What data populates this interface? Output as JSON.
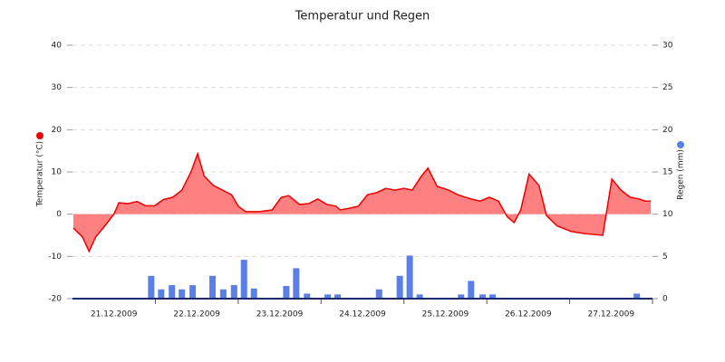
{
  "chart_data": {
    "type": "combo",
    "title": "Temperatur und Regen",
    "xlim": [
      0,
      7
    ],
    "xticks": [
      {
        "value": 0.5,
        "label": "21.12.2009"
      },
      {
        "value": 1.5,
        "label": "22.12.2009"
      },
      {
        "value": 2.5,
        "label": "23.12.2009"
      },
      {
        "value": 3.5,
        "label": "24.12.2009"
      },
      {
        "value": 4.5,
        "label": "25.12.2009"
      },
      {
        "value": 5.5,
        "label": "26.12.2009"
      },
      {
        "value": 6.5,
        "label": "27.12.2009"
      }
    ],
    "xticks_minor": [
      1,
      2,
      3,
      4,
      5,
      6,
      7
    ],
    "ylim": [
      -20,
      40
    ],
    "yticks": [
      -20,
      -10,
      0,
      10,
      20,
      30,
      40
    ],
    "y2lim": [
      0,
      30
    ],
    "y2ticks": [
      0,
      5,
      10,
      15,
      20,
      25,
      30
    ],
    "grid": true,
    "series": [
      {
        "name": "Temperatur (°C)",
        "type": "area",
        "color": "#ee0000",
        "fill": "#ff8080",
        "x": [
          0.01,
          0.12,
          0.2,
          0.28,
          0.39,
          0.5,
          0.56,
          0.67,
          0.78,
          0.88,
          0.99,
          1.1,
          1.21,
          1.32,
          1.43,
          1.51,
          1.59,
          1.7,
          1.81,
          1.92,
          2.0,
          2.09,
          2.25,
          2.41,
          2.52,
          2.61,
          2.74,
          2.85,
          2.96,
          3.07,
          3.18,
          3.23,
          3.34,
          3.45,
          3.56,
          3.67,
          3.78,
          3.89,
          4.0,
          4.1,
          4.21,
          4.29,
          4.4,
          4.54,
          4.65,
          4.81,
          4.92,
          5.03,
          5.14,
          5.25,
          5.33,
          5.41,
          5.51,
          5.63,
          5.72,
          5.85,
          6.02,
          6.18,
          6.4,
          6.51,
          6.62,
          6.73,
          6.84,
          6.91,
          6.98
        ],
        "values": [
          -3.3,
          -5.4,
          -8.8,
          -5.4,
          -2.8,
          0,
          2.7,
          2.5,
          3,
          2,
          2,
          3.5,
          4,
          5.7,
          10,
          14.3,
          9,
          6.8,
          5.7,
          4.6,
          1.9,
          0.6,
          0.6,
          1,
          4,
          4.4,
          2.3,
          2.5,
          3.6,
          2.3,
          1.9,
          1,
          1.4,
          1.9,
          4.6,
          5.1,
          6.1,
          5.7,
          6.1,
          5.7,
          9,
          10.9,
          6.6,
          5.7,
          4.6,
          3.6,
          3.1,
          4,
          3.1,
          -0.7,
          -2,
          1,
          9.5,
          6.8,
          -0.3,
          -2.8,
          -4.1,
          -4.6,
          -5,
          8.3,
          5.7,
          4,
          3.6,
          3.1,
          3.1
        ]
      },
      {
        "name": "Regen (mm)",
        "type": "bar",
        "axis": "y2",
        "color": "#5b7fe8",
        "x": [
          0.95,
          1.07,
          1.2,
          1.32,
          1.45,
          1.69,
          1.82,
          1.95,
          2.07,
          2.19,
          2.58,
          2.7,
          2.83,
          3.08,
          3.2,
          3.7,
          3.95,
          4.07,
          4.19,
          4.69,
          4.81,
          4.95,
          5.07,
          6.81
        ],
        "values": [
          2.7,
          1.1,
          1.6,
          1.1,
          1.6,
          2.7,
          1.1,
          1.6,
          4.6,
          1.2,
          1.5,
          3.6,
          0.6,
          0.5,
          0.5,
          1.1,
          2.7,
          5.1,
          0.5,
          0.5,
          2.1,
          0.5,
          0.5,
          0.6
        ]
      }
    ]
  }
}
